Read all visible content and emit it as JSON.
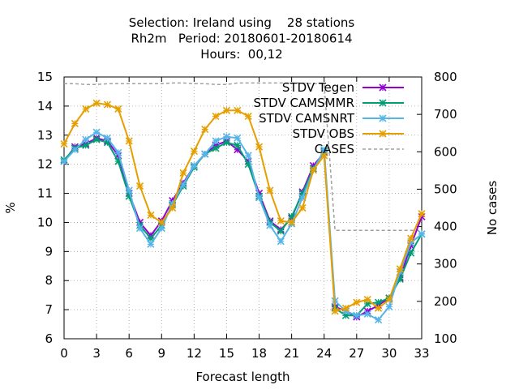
{
  "chart_data": {
    "type": "line",
    "title_lines": [
      "Selection: Ireland using    28 stations",
      "Rh2m   Period: 20180601-20180614",
      "Hours:  00,12"
    ],
    "xlabel": "Forecast length",
    "ylabel": "%",
    "y2label": "No cases",
    "xlim": [
      0,
      33
    ],
    "ylim": [
      6,
      15
    ],
    "y2lim": [
      100,
      800
    ],
    "x_ticks": [
      0,
      3,
      6,
      9,
      12,
      15,
      18,
      21,
      24,
      27,
      30,
      33
    ],
    "y_ticks": [
      6,
      7,
      8,
      9,
      10,
      11,
      12,
      13,
      14,
      15
    ],
    "y2_ticks": [
      100,
      200,
      300,
      400,
      500,
      600,
      700,
      800
    ],
    "grid": true,
    "legend_position": "top-right",
    "x": [
      0,
      1,
      2,
      3,
      4,
      5,
      6,
      7,
      8,
      9,
      10,
      11,
      12,
      13,
      14,
      15,
      16,
      17,
      18,
      19,
      20,
      21,
      22,
      23,
      24,
      25,
      26,
      27,
      28,
      29,
      30,
      31,
      32,
      33
    ],
    "series": [
      {
        "name": "STDV Tegen",
        "color": "#9400d3",
        "axis": "y",
        "marker": "x",
        "values": [
          12.1,
          12.6,
          12.7,
          12.9,
          12.8,
          12.3,
          11.0,
          10.0,
          9.55,
          10.05,
          10.75,
          11.35,
          11.95,
          12.35,
          12.65,
          12.8,
          12.5,
          12.1,
          11.0,
          10.05,
          9.75,
          10.15,
          11.05,
          11.95,
          12.4,
          7.1,
          6.95,
          6.75,
          6.95,
          7.15,
          7.4,
          8.1,
          9.2,
          10.2
        ]
      },
      {
        "name": "STDV CAMSMMR",
        "color": "#009e73",
        "axis": "y",
        "marker": "x",
        "values": [
          12.15,
          12.55,
          12.65,
          12.85,
          12.75,
          12.1,
          10.9,
          9.9,
          9.45,
          9.9,
          10.6,
          11.25,
          11.9,
          12.35,
          12.55,
          12.75,
          12.65,
          12.0,
          10.9,
          10.0,
          9.7,
          10.2,
          11.0,
          11.85,
          12.45,
          7.05,
          6.8,
          6.8,
          7.2,
          7.25,
          7.4,
          8.05,
          8.95,
          9.6
        ]
      },
      {
        "name": "STDV CAMSNRT",
        "color": "#56b4e9",
        "axis": "y",
        "marker": "x",
        "values": [
          12.1,
          12.5,
          12.85,
          13.1,
          12.9,
          12.4,
          11.1,
          9.8,
          9.25,
          9.8,
          10.65,
          11.3,
          11.95,
          12.35,
          12.8,
          12.95,
          12.9,
          12.3,
          10.85,
          9.9,
          9.35,
          9.95,
          10.85,
          11.8,
          12.5,
          7.3,
          6.95,
          6.8,
          6.85,
          6.65,
          7.1,
          8.3,
          9.3,
          9.6
        ]
      },
      {
        "name": "STDV OBS",
        "color": "#e69f00",
        "axis": "y",
        "marker": "x",
        "values": [
          12.7,
          13.4,
          13.9,
          14.1,
          14.05,
          13.9,
          12.8,
          11.25,
          10.25,
          10.0,
          10.5,
          11.7,
          12.45,
          13.2,
          13.65,
          13.85,
          13.85,
          13.65,
          12.6,
          11.1,
          10.05,
          10.0,
          10.5,
          11.8,
          12.3,
          6.95,
          7.05,
          7.25,
          7.35,
          7.05,
          7.35,
          8.4,
          9.45,
          10.3
        ]
      },
      {
        "name": "CASES",
        "color": "#a0a0a0",
        "axis": "y2",
        "dashed": true,
        "x": [
          0,
          1,
          2,
          3,
          4,
          5,
          6,
          7,
          8,
          9,
          10,
          11,
          12,
          13,
          14,
          15,
          16,
          17,
          18,
          19,
          20,
          21,
          22,
          23,
          24,
          25,
          26,
          27,
          28,
          29,
          30,
          31,
          32,
          33
        ],
        "values": [
          782,
          782,
          780,
          780,
          782,
          782,
          782,
          782,
          782,
          782,
          784,
          784,
          782,
          782,
          780,
          780,
          784,
          784,
          784,
          784,
          784,
          784,
          784,
          782,
          782,
          390,
          390,
          390,
          390,
          390,
          390,
          390,
          390,
          390
        ]
      }
    ]
  }
}
